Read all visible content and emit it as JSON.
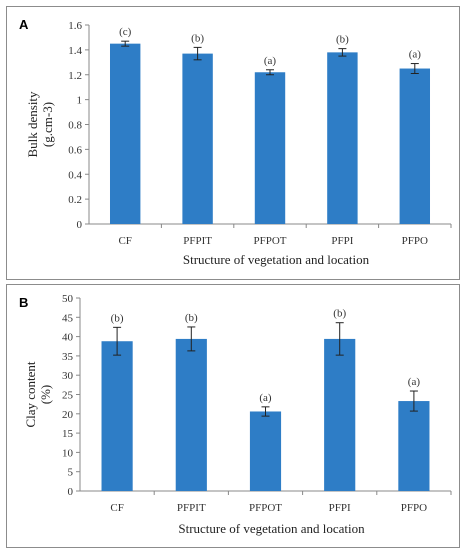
{
  "chart_data": [
    {
      "type": "bar",
      "panel_letter": "A",
      "categories": [
        "CF",
        "PFPIT",
        "PFPOT",
        "PFPI",
        "PFPO"
      ],
      "values": [
        1.45,
        1.37,
        1.22,
        1.38,
        1.25
      ],
      "errors": [
        0.02,
        0.05,
        0.02,
        0.03,
        0.04
      ],
      "labels": [
        "(c)",
        "(b)",
        "(a)",
        "(b)",
        "(a)"
      ],
      "xlabel": "Structure of vegetation and location",
      "ylabel_lines": [
        "Bulk density",
        "(g.cm-3)"
      ],
      "yticks": [
        "0",
        "0.2",
        "0.4",
        "0.6",
        "0.8",
        "1",
        "1.2",
        "1.4",
        "1.6"
      ],
      "ylim": [
        0,
        1.6
      ],
      "grid": false,
      "bar_color": "#2e7dc6"
    },
    {
      "type": "bar",
      "panel_letter": "B",
      "categories": [
        "CF",
        "PFPIT",
        "PFPOT",
        "PFPI",
        "PFPO"
      ],
      "values": [
        38.8,
        39.4,
        20.6,
        39.4,
        23.3
      ],
      "errors": [
        3.6,
        3.1,
        1.2,
        4.2,
        2.6
      ],
      "labels": [
        "(b)",
        "(b)",
        "(a)",
        "(b)",
        "(a)"
      ],
      "xlabel": "Structure of vegetation and location",
      "ylabel_lines": [
        "Clay content",
        "(%)"
      ],
      "yticks": [
        "0",
        "5",
        "10",
        "15",
        "20",
        "25",
        "30",
        "35",
        "40",
        "45",
        "50"
      ],
      "ylim": [
        0,
        50
      ],
      "grid": false,
      "bar_color": "#2e7dc6"
    }
  ]
}
